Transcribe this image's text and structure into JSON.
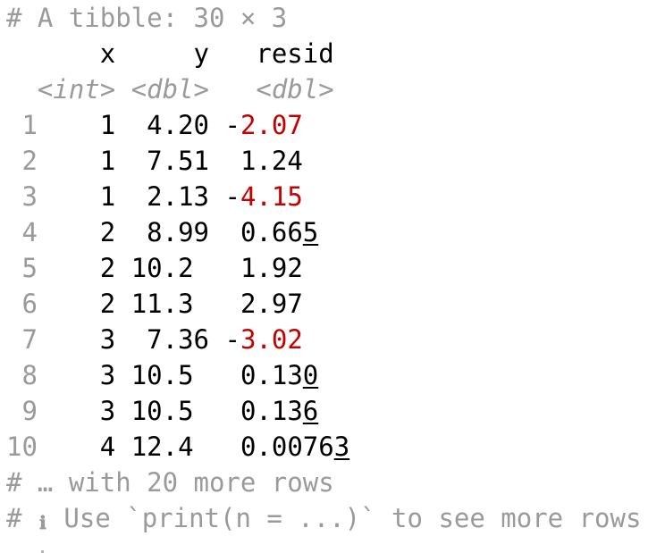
{
  "header": {
    "description": "# A tibble: 30 × 3"
  },
  "columns": {
    "names": [
      "x",
      "y",
      "resid"
    ],
    "types": [
      "<int>",
      "<dbl>",
      "<dbl>"
    ]
  },
  "rows": [
    {
      "index": "1",
      "x": "1",
      "y": "4.20",
      "resid": "-2.07"
    },
    {
      "index": "2",
      "x": "1",
      "y": "7.51",
      "resid": "1.24"
    },
    {
      "index": "3",
      "x": "1",
      "y": "2.13",
      "resid": "-4.15"
    },
    {
      "index": "4",
      "x": "2",
      "y": "8.99",
      "resid": "0.665"
    },
    {
      "index": "5",
      "x": "2",
      "y": "10.2",
      "resid": "1.92"
    },
    {
      "index": "6",
      "x": "2",
      "y": "11.3",
      "resid": "2.97"
    },
    {
      "index": "7",
      "x": "3",
      "y": "7.36",
      "resid": "-3.02"
    },
    {
      "index": "8",
      "x": "3",
      "y": "10.5",
      "resid": "0.130"
    },
    {
      "index": "9",
      "x": "3",
      "y": "10.5",
      "resid": "0.136"
    },
    {
      "index": "10",
      "x": "4",
      "y": "12.4",
      "resid": "0.00763"
    }
  ],
  "footer": {
    "more_rows": "# … with 20 more rows",
    "hint_prefix": "# ",
    "hint_icon": "ℹ",
    "hint_text": " Use `print(n = ...)` to see more rows"
  },
  "colors": {
    "negative": "#c40000",
    "muted": "#9a9a9a",
    "text": "#000000",
    "background": "#ffffff"
  }
}
